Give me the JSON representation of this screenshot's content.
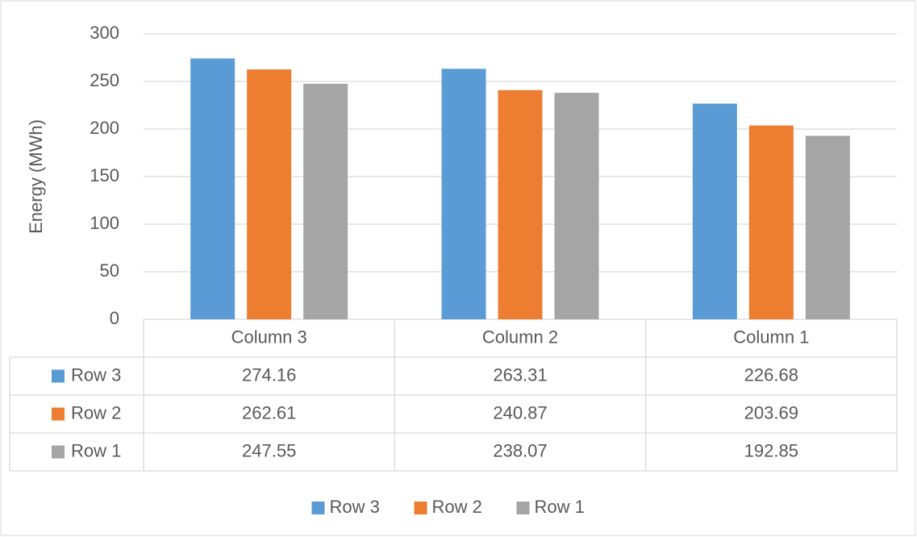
{
  "chart_data": {
    "type": "bar",
    "y_label": "Energy (MWh)",
    "categories": [
      "Column 3",
      "Column 2",
      "Column 1"
    ],
    "series": [
      {
        "name": "Row 3",
        "color": "#5b9bd5",
        "values": [
          274.16,
          263.31,
          226.68
        ]
      },
      {
        "name": "Row 2",
        "color": "#ed7d31",
        "values": [
          262.61,
          240.87,
          203.69
        ]
      },
      {
        "name": "Row 1",
        "color": "#a5a5a5",
        "values": [
          247.55,
          238.07,
          192.85
        ]
      }
    ],
    "ylim": [
      0,
      300
    ],
    "yticks": [
      0,
      50,
      100,
      150,
      200,
      250,
      300
    ],
    "grid": true,
    "data_table": true,
    "legend": "bottom"
  }
}
